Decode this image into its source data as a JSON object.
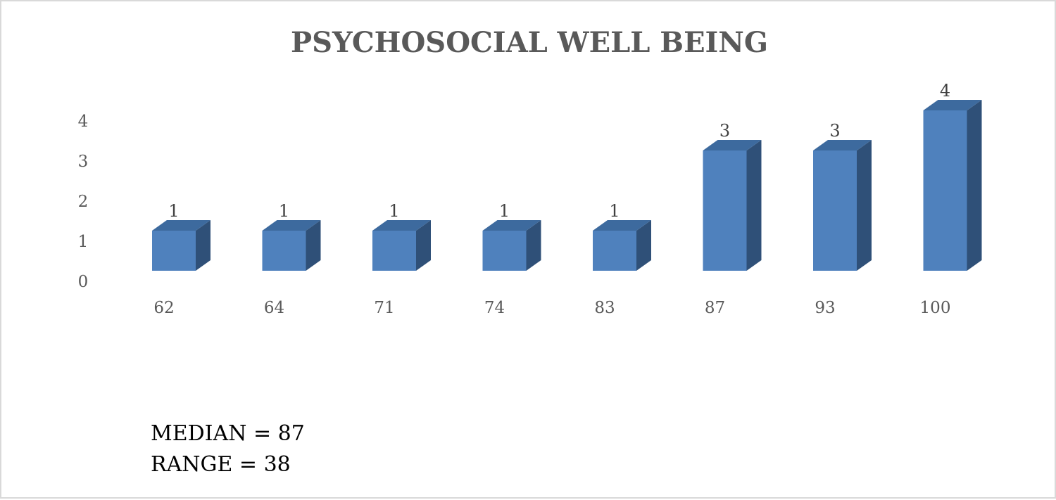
{
  "chart_data": {
    "type": "bar",
    "title": "PSYCHOSOCIAL WELL BEING",
    "xlabel": "",
    "ylabel": "",
    "categories": [
      "62",
      "64",
      "71",
      "74",
      "83",
      "87",
      "93",
      "100"
    ],
    "values": [
      1,
      1,
      1,
      1,
      1,
      3,
      3,
      4
    ],
    "ylim": [
      0,
      4
    ],
    "yticks": [
      "0",
      "1",
      "2",
      "3",
      "4"
    ],
    "grid": false,
    "legend": "none",
    "style": "3d-column",
    "colors": {
      "front": "#4f81bd",
      "top": "#3d6a9e",
      "side": "#2f5078"
    }
  },
  "annotations": {
    "median": "MEDIAN = 87",
    "range": "RANGE = 38"
  }
}
